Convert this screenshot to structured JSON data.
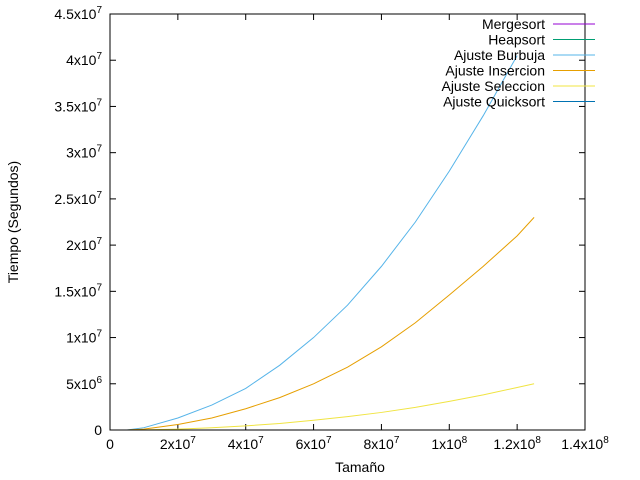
{
  "chart_data": {
    "type": "line",
    "xlabel": "Tamaño",
    "ylabel": "Tiempo (Segundos)",
    "xlim": [
      0,
      140000000
    ],
    "ylim": [
      0,
      45000000
    ],
    "x_ticks": [
      {
        "value": 0,
        "mant": "0",
        "exp": ""
      },
      {
        "value": 20000000,
        "mant": "2x10",
        "exp": "7"
      },
      {
        "value": 40000000,
        "mant": "4x10",
        "exp": "7"
      },
      {
        "value": 60000000,
        "mant": "6x10",
        "exp": "7"
      },
      {
        "value": 80000000,
        "mant": "8x10",
        "exp": "7"
      },
      {
        "value": 100000000,
        "mant": "1x10",
        "exp": "8"
      },
      {
        "value": 120000000,
        "mant": "1.2x10",
        "exp": "8"
      },
      {
        "value": 140000000,
        "mant": "1.4x10",
        "exp": "8"
      }
    ],
    "y_ticks": [
      {
        "value": 0,
        "mant": "0",
        "exp": ""
      },
      {
        "value": 5000000,
        "mant": "5x10",
        "exp": "6"
      },
      {
        "value": 10000000,
        "mant": "1x10",
        "exp": "7"
      },
      {
        "value": 15000000,
        "mant": "1.5x10",
        "exp": "7"
      },
      {
        "value": 20000000,
        "mant": "2x10",
        "exp": "7"
      },
      {
        "value": 25000000,
        "mant": "2.5x10",
        "exp": "7"
      },
      {
        "value": 30000000,
        "mant": "3x10",
        "exp": "7"
      },
      {
        "value": 35000000,
        "mant": "3.5x10",
        "exp": "7"
      },
      {
        "value": 40000000,
        "mant": "4x10",
        "exp": "7"
      },
      {
        "value": 45000000,
        "mant": "4.5x10",
        "exp": "7"
      }
    ],
    "legend_position": "top-right",
    "series": [
      {
        "name": "Mergesort",
        "color": "#9400d3",
        "x": [],
        "y": []
      },
      {
        "name": "Heapsort",
        "color": "#009e73",
        "x": [],
        "y": []
      },
      {
        "name": "Ajuste Burbuja",
        "color": "#56b4e9",
        "x": [
          5000000,
          10000000,
          20000000,
          30000000,
          40000000,
          50000000,
          60000000,
          70000000,
          80000000,
          90000000,
          100000000,
          110000000,
          120000000
        ],
        "y": [
          0,
          250000,
          1300000,
          2700000,
          4500000,
          7000000,
          10000000,
          13500000,
          17700000,
          22500000,
          28000000,
          34000000,
          40500000
        ]
      },
      {
        "name": "Ajuste Insercion",
        "color": "#e69f00",
        "x": [
          5000000,
          10000000,
          20000000,
          30000000,
          40000000,
          50000000,
          60000000,
          70000000,
          80000000,
          90000000,
          100000000,
          110000000,
          120000000,
          125000000
        ],
        "y": [
          0,
          100000,
          600000,
          1300000,
          2300000,
          3500000,
          5000000,
          6800000,
          9000000,
          11600000,
          14600000,
          17700000,
          21000000,
          23000000
        ]
      },
      {
        "name": "Ajuste Seleccion",
        "color": "#f0e442",
        "x": [
          5000000,
          10000000,
          20000000,
          30000000,
          40000000,
          50000000,
          60000000,
          70000000,
          80000000,
          90000000,
          100000000,
          110000000,
          120000000,
          125000000
        ],
        "y": [
          0,
          20000,
          100000,
          250000,
          450000,
          700000,
          1050000,
          1450000,
          1900000,
          2450000,
          3100000,
          3800000,
          4600000,
          5000000
        ]
      },
      {
        "name": "Ajuste Quicksort",
        "color": "#0072b2",
        "x": [
          5000000,
          125000000
        ],
        "y": [
          0,
          0
        ]
      }
    ]
  }
}
